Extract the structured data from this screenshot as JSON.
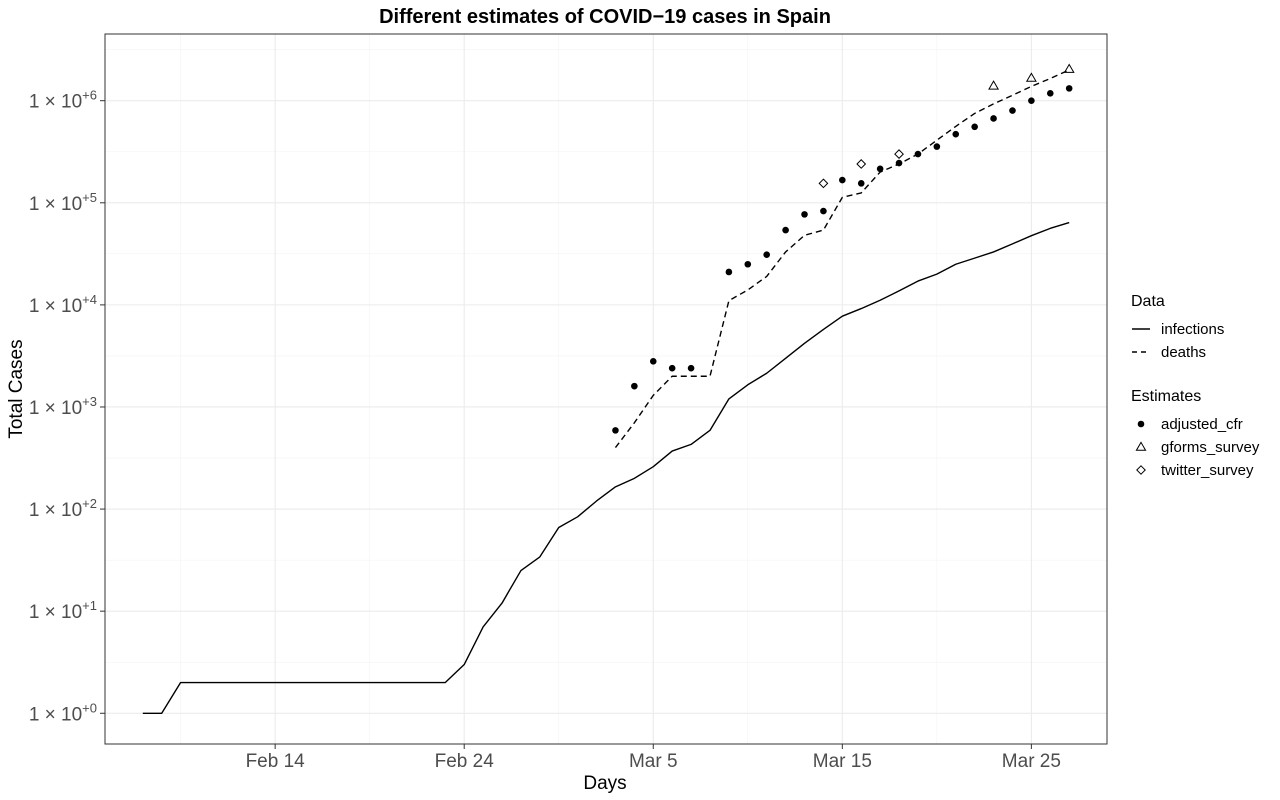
{
  "chart_data": {
    "type": "line",
    "title": "Different estimates of COVID−19 cases in Spain",
    "xlabel": "Days",
    "ylabel": "Total Cases",
    "x_axis_type": "date",
    "x_range": [
      "2020-02-05",
      "2020-03-29"
    ],
    "y_scale": "log10",
    "y_range": [
      0.5,
      4500000
    ],
    "x_ticks": [
      {
        "date": "2020-02-14",
        "label": "Feb 14"
      },
      {
        "date": "2020-02-24",
        "label": "Feb 24"
      },
      {
        "date": "2020-03-05",
        "label": "Mar 5"
      },
      {
        "date": "2020-03-15",
        "label": "Mar 15"
      },
      {
        "date": "2020-03-25",
        "label": "Mar 25"
      }
    ],
    "y_ticks": [
      {
        "value": 1,
        "base": "1 × 10",
        "exp": "+0"
      },
      {
        "value": 10,
        "base": "1 × 10",
        "exp": "+1"
      },
      {
        "value": 100,
        "base": "1 × 10",
        "exp": "+2"
      },
      {
        "value": 1000,
        "base": "1 × 10",
        "exp": "+3"
      },
      {
        "value": 10000,
        "base": "1 × 10",
        "exp": "+4"
      },
      {
        "value": 100000,
        "base": "1 × 10",
        "exp": "+5"
      },
      {
        "value": 1000000,
        "base": "1 × 10",
        "exp": "+6"
      }
    ],
    "grid": true,
    "legend_position": "right",
    "legends": [
      {
        "title": "Data",
        "entries": [
          {
            "label": "infections",
            "kind": "line",
            "dash": "solid"
          },
          {
            "label": "deaths",
            "kind": "line",
            "dash": "dashed"
          }
        ]
      },
      {
        "title": "Estimates",
        "entries": [
          {
            "label": "adjusted_cfr",
            "kind": "point",
            "shape": "circle"
          },
          {
            "label": "gforms_survey",
            "kind": "point",
            "shape": "triangle"
          },
          {
            "label": "twitter_survey",
            "kind": "point",
            "shape": "diamond"
          }
        ]
      }
    ],
    "series": [
      {
        "name": "infections",
        "kind": "line",
        "dash": "solid",
        "points": [
          [
            "2020-02-07",
            1
          ],
          [
            "2020-02-08",
            1
          ],
          [
            "2020-02-09",
            2
          ],
          [
            "2020-02-10",
            2
          ],
          [
            "2020-02-11",
            2
          ],
          [
            "2020-02-12",
            2
          ],
          [
            "2020-02-13",
            2
          ],
          [
            "2020-02-14",
            2
          ],
          [
            "2020-02-15",
            2
          ],
          [
            "2020-02-16",
            2
          ],
          [
            "2020-02-17",
            2
          ],
          [
            "2020-02-18",
            2
          ],
          [
            "2020-02-19",
            2
          ],
          [
            "2020-02-20",
            2
          ],
          [
            "2020-02-21",
            2
          ],
          [
            "2020-02-22",
            2
          ],
          [
            "2020-02-23",
            2
          ],
          [
            "2020-02-24",
            3
          ],
          [
            "2020-02-25",
            7
          ],
          [
            "2020-02-26",
            12
          ],
          [
            "2020-02-27",
            25
          ],
          [
            "2020-02-28",
            34
          ],
          [
            "2020-02-29",
            66
          ],
          [
            "2020-03-01",
            84
          ],
          [
            "2020-03-02",
            120
          ],
          [
            "2020-03-03",
            165
          ],
          [
            "2020-03-04",
            200
          ],
          [
            "2020-03-05",
            260
          ],
          [
            "2020-03-06",
            370
          ],
          [
            "2020-03-07",
            430
          ],
          [
            "2020-03-08",
            590
          ],
          [
            "2020-03-09",
            1200
          ],
          [
            "2020-03-10",
            1650
          ],
          [
            "2020-03-11",
            2140
          ],
          [
            "2020-03-12",
            3000
          ],
          [
            "2020-03-13",
            4200
          ],
          [
            "2020-03-14",
            5750
          ],
          [
            "2020-03-15",
            7750
          ],
          [
            "2020-03-16",
            9200
          ],
          [
            "2020-03-17",
            11100
          ],
          [
            "2020-03-18",
            13700
          ],
          [
            "2020-03-19",
            17100
          ],
          [
            "2020-03-20",
            20000
          ],
          [
            "2020-03-21",
            25000
          ],
          [
            "2020-03-22",
            28700
          ],
          [
            "2020-03-23",
            33000
          ],
          [
            "2020-03-24",
            39600
          ],
          [
            "2020-03-25",
            47600
          ],
          [
            "2020-03-26",
            56200
          ],
          [
            "2020-03-27",
            64000
          ]
        ]
      },
      {
        "name": "deaths",
        "kind": "line",
        "dash": "dashed",
        "points": [
          [
            "2020-03-03",
            400
          ],
          [
            "2020-03-04",
            700
          ],
          [
            "2020-03-05",
            1300
          ],
          [
            "2020-03-06",
            2000
          ],
          [
            "2020-03-07",
            2000
          ],
          [
            "2020-03-08",
            2000
          ],
          [
            "2020-03-09",
            11000
          ],
          [
            "2020-03-10",
            14000
          ],
          [
            "2020-03-11",
            19000
          ],
          [
            "2020-03-12",
            33000
          ],
          [
            "2020-03-13",
            48000
          ],
          [
            "2020-03-14",
            54000
          ],
          [
            "2020-03-15",
            113000
          ],
          [
            "2020-03-16",
            125000
          ],
          [
            "2020-03-17",
            200000
          ],
          [
            "2020-03-18",
            240000
          ],
          [
            "2020-03-19",
            300000
          ],
          [
            "2020-03-20",
            410000
          ],
          [
            "2020-03-21",
            560000
          ],
          [
            "2020-03-22",
            750000
          ],
          [
            "2020-03-23",
            930000
          ],
          [
            "2020-03-24",
            1130000
          ],
          [
            "2020-03-25",
            1380000
          ],
          [
            "2020-03-26",
            1650000
          ],
          [
            "2020-03-27",
            2000000
          ]
        ]
      },
      {
        "name": "adjusted_cfr",
        "kind": "point",
        "shape": "circle",
        "points": [
          [
            "2020-03-03",
            590
          ],
          [
            "2020-03-04",
            1600
          ],
          [
            "2020-03-05",
            2800
          ],
          [
            "2020-03-06",
            2400
          ],
          [
            "2020-03-07",
            2400
          ],
          [
            "2020-03-09",
            21000
          ],
          [
            "2020-03-10",
            25000
          ],
          [
            "2020-03-11",
            31000
          ],
          [
            "2020-03-12",
            54000
          ],
          [
            "2020-03-13",
            77000
          ],
          [
            "2020-03-14",
            83000
          ],
          [
            "2020-03-15",
            167000
          ],
          [
            "2020-03-16",
            155000
          ],
          [
            "2020-03-17",
            215000
          ],
          [
            "2020-03-18",
            245000
          ],
          [
            "2020-03-19",
            300000
          ],
          [
            "2020-03-20",
            355000
          ],
          [
            "2020-03-21",
            470000
          ],
          [
            "2020-03-22",
            555000
          ],
          [
            "2020-03-23",
            670000
          ],
          [
            "2020-03-24",
            800000
          ],
          [
            "2020-03-25",
            1000000
          ],
          [
            "2020-03-26",
            1180000
          ],
          [
            "2020-03-27",
            1320000
          ]
        ]
      },
      {
        "name": "gforms_survey",
        "kind": "point",
        "shape": "triangle",
        "points": [
          [
            "2020-03-23",
            1400000
          ],
          [
            "2020-03-25",
            1670000
          ],
          [
            "2020-03-27",
            2040000
          ]
        ]
      },
      {
        "name": "twitter_survey",
        "kind": "point",
        "shape": "diamond",
        "points": [
          [
            "2020-03-14",
            155000
          ],
          [
            "2020-03-16",
            240000
          ],
          [
            "2020-03-18",
            300000
          ]
        ]
      }
    ]
  }
}
